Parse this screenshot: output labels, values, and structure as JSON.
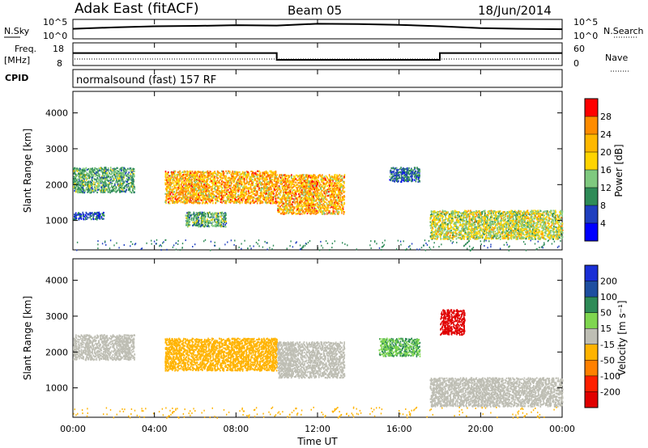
{
  "header": {
    "site": "Adak East (fitACF)",
    "beam": "Beam 05",
    "date": "18/Jun/2014"
  },
  "noise_panel": {
    "left_label": "N.Sky",
    "right_label": "N.Search",
    "left_ticks": [
      "10^5",
      "10^0"
    ],
    "right_ticks": [
      "10^5",
      "10^0"
    ]
  },
  "freq_panel": {
    "left_label": "Freq.",
    "left_unit": "[MHz]",
    "right_label": "Nave",
    "left_ticks": [
      "18",
      "8"
    ],
    "right_ticks": [
      "60",
      "0"
    ]
  },
  "cpid_panel": {
    "label": "CPID",
    "text": "normalsound (fast) 157 RF"
  },
  "power_panel": {
    "ylabel": "Slant Range [km]",
    "colorbar_label": "Power [dB]",
    "colorbar_ticks": [
      "28",
      "24",
      "20",
      "16",
      "12",
      "8",
      "4"
    ],
    "colorbar_colors": [
      "#ff0000",
      "#ff8c00",
      "#ffb800",
      "#ffd400",
      "#7fc97f",
      "#2e8b57",
      "#1f3fbf",
      "#0000ff"
    ]
  },
  "velocity_panel": {
    "ylabel": "Slant Range [km]",
    "colorbar_label": "Velocity [m s⁻¹]",
    "colorbar_ticks": [
      "200",
      "100",
      "50",
      "15",
      "-15",
      "-50",
      "-100",
      "-200"
    ],
    "colorbar_colors": [
      "#1a2fd6",
      "#1e4fa0",
      "#2e8b57",
      "#7fd64f",
      "#bebeb4",
      "#ffb300",
      "#ff8000",
      "#ff2000",
      "#e00000"
    ]
  },
  "x_axis": {
    "label": "Time UT",
    "ticks": [
      "00:00",
      "04:00",
      "08:00",
      "12:00",
      "16:00",
      "20:00",
      "00:00"
    ]
  },
  "y_ticks": [
    "1000",
    "2000",
    "3000",
    "4000"
  ],
  "chart_data": [
    {
      "type": "line",
      "title": "N.Sky",
      "x": [
        0,
        2,
        4,
        6,
        8,
        10,
        12,
        14,
        16,
        18,
        20,
        22,
        24
      ],
      "series": [
        {
          "values": [
            2.3,
            2.7,
            3.0,
            3.1,
            3.3,
            3.2,
            3.7,
            3.6,
            3.4,
            3.0,
            2.5,
            2.3,
            2.2
          ]
        }
      ]
    },
    {
      "type": "line",
      "title": "Freq. [MHz]",
      "x": [
        0,
        10,
        10,
        18,
        18,
        24
      ],
      "series": [
        {
          "values": [
            13.5,
            13.5,
            10.5,
            10.5,
            13.5,
            13.5
          ]
        }
      ],
      "ylim": [
        8,
        18
      ]
    },
    {
      "type": "heatmap",
      "title": "Power [dB]",
      "xlabel": "Time UT",
      "ylabel": "Slant Range [km]",
      "xlim": [
        0,
        24
      ],
      "ylim": [
        180,
        4600
      ],
      "regions": [
        {
          "t": [
            0,
            3
          ],
          "r": [
            1800,
            2500
          ],
          "power": 12
        },
        {
          "t": [
            0,
            1.5
          ],
          "r": [
            1050,
            1250
          ],
          "power": 6
        },
        {
          "t": [
            4.5,
            10
          ],
          "r": [
            1500,
            2400
          ],
          "power": 20
        },
        {
          "t": [
            5.5,
            7.5
          ],
          "r": [
            850,
            1250
          ],
          "power": 12
        },
        {
          "t": [
            10,
            13.3
          ],
          "r": [
            1200,
            2300
          ],
          "power": 20
        },
        {
          "t": [
            15.5,
            17
          ],
          "r": [
            2100,
            2500
          ],
          "power": 8
        },
        {
          "t": [
            17.5,
            24
          ],
          "r": [
            500,
            1300
          ],
          "power": 16
        }
      ]
    },
    {
      "type": "heatmap",
      "title": "Velocity [m s⁻¹]",
      "xlabel": "Time UT",
      "ylabel": "Slant Range [km]",
      "xlim": [
        0,
        24
      ],
      "ylim": [
        180,
        4600
      ],
      "regions": [
        {
          "t": [
            0,
            3
          ],
          "r": [
            1800,
            2500
          ],
          "velocity": 0
        },
        {
          "t": [
            4.5,
            10
          ],
          "r": [
            1500,
            2400
          ],
          "velocity": -30
        },
        {
          "t": [
            10,
            13.3
          ],
          "r": [
            1300,
            2300
          ],
          "velocity": 0
        },
        {
          "t": [
            15,
            17
          ],
          "r": [
            1900,
            2400
          ],
          "velocity": 30
        },
        {
          "t": [
            18,
            19.2
          ],
          "r": [
            2500,
            3200
          ],
          "velocity": -200
        },
        {
          "t": [
            17.5,
            24
          ],
          "r": [
            500,
            1300
          ],
          "velocity": 0
        }
      ]
    }
  ]
}
